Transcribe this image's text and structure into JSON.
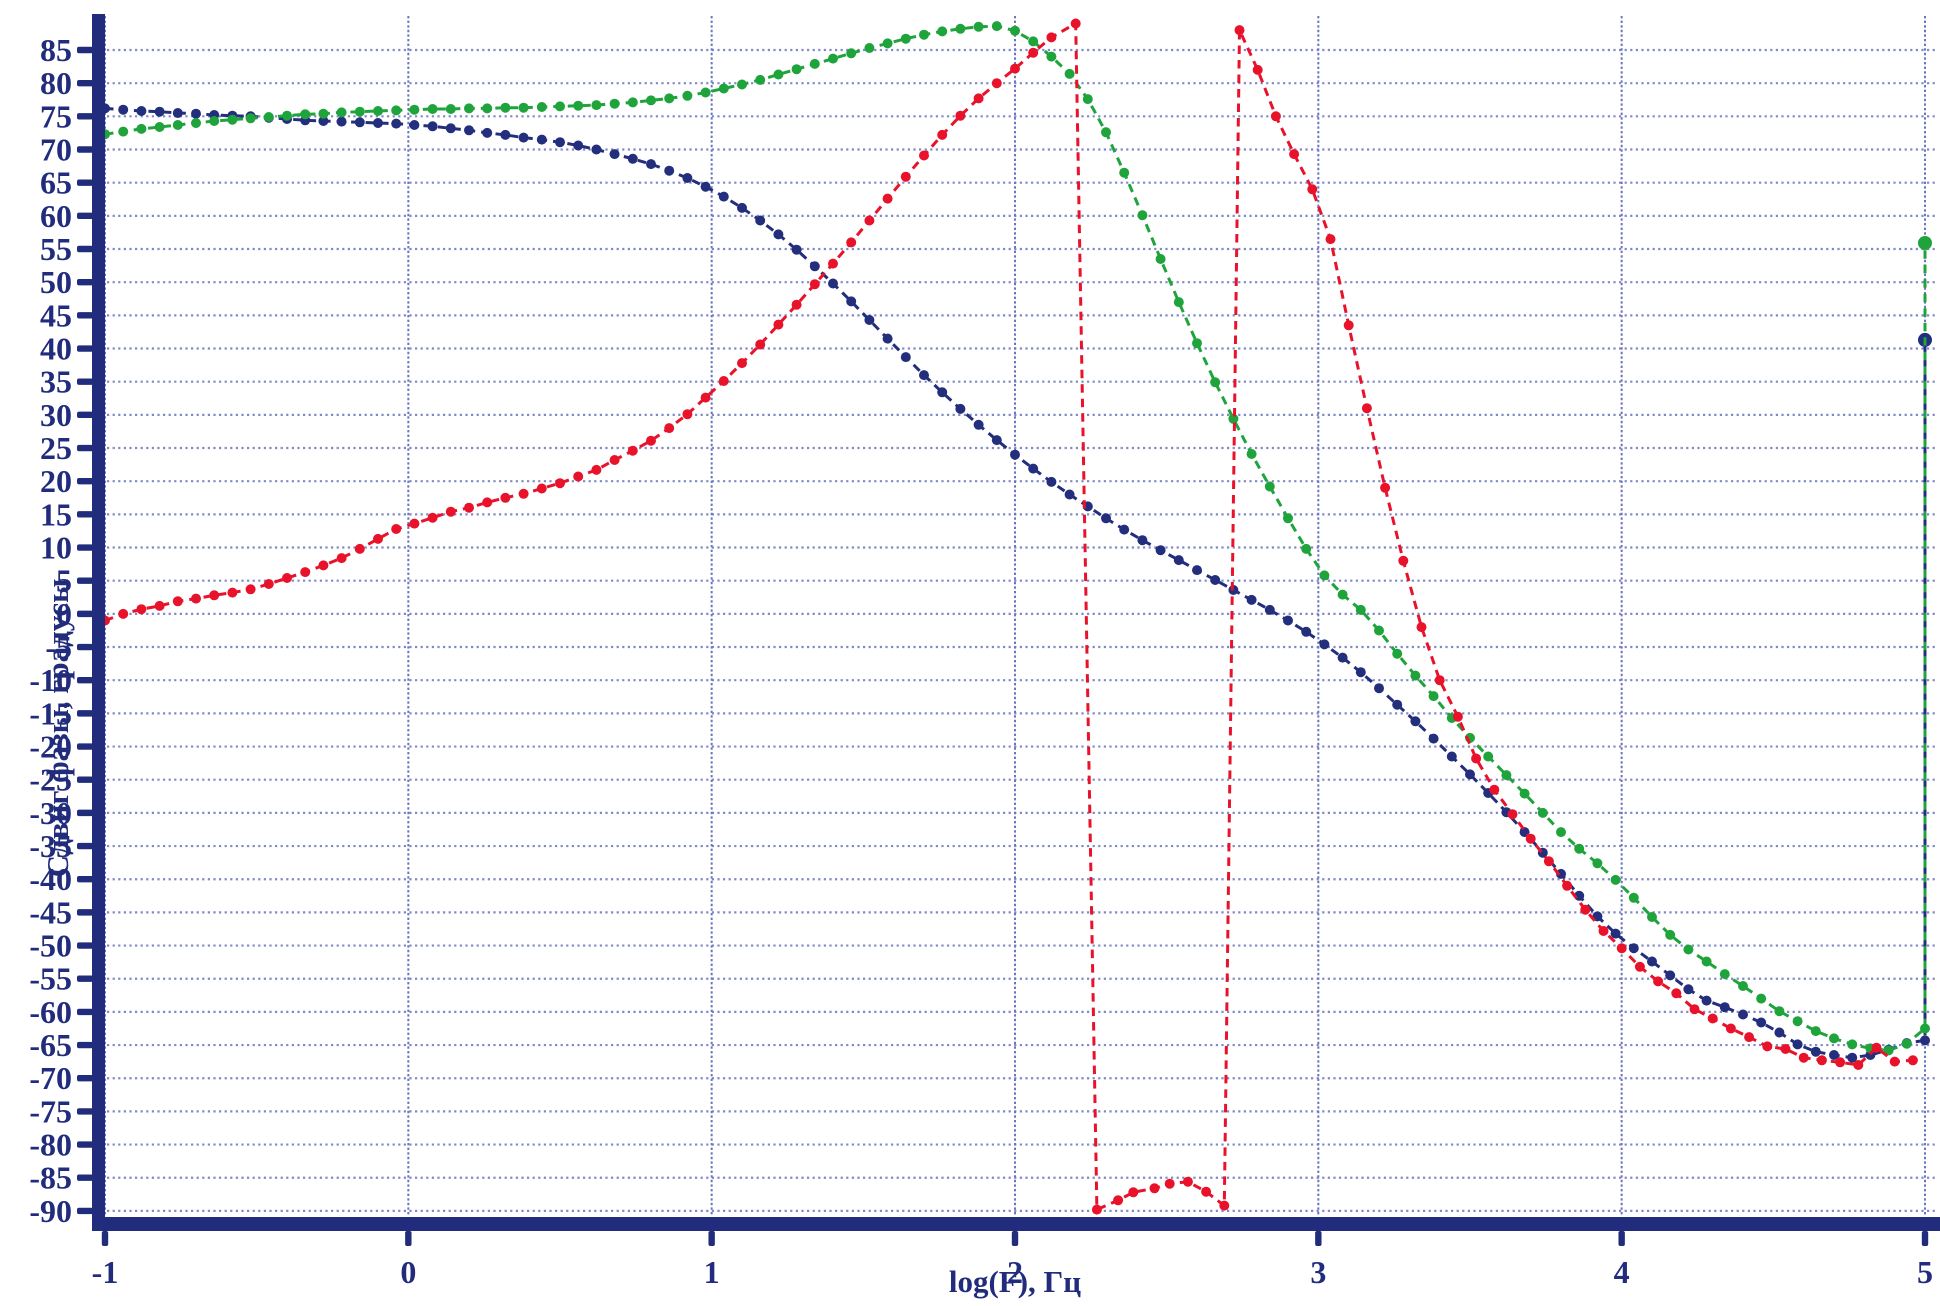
{
  "page": {
    "background": "#ffffff"
  },
  "chart_data": {
    "type": "line",
    "title": "",
    "xlabel": "log(F), Гц",
    "ylabel": "Сдвиг фазы, градусы",
    "xlim": [
      -1,
      5
    ],
    "ylim": [
      -90,
      90.5
    ],
    "x_ticks": [
      -1,
      0,
      1,
      2,
      3,
      4,
      5
    ],
    "y_ticks": [
      85,
      80,
      75,
      70,
      65,
      60,
      55,
      50,
      45,
      40,
      35,
      30,
      25,
      20,
      15,
      10,
      5,
      0,
      -5,
      -10,
      -15,
      -20,
      -25,
      -30,
      -35,
      -40,
      -45,
      -50,
      -55,
      -60,
      -65,
      -70,
      -75,
      -80,
      -85,
      -90
    ],
    "grid": "dotted",
    "legend": "none",
    "axis_color": "#222c7c",
    "grid_color": "#8089c8",
    "vgrid_color": "#6a76bf",
    "label_color": "#222c7c",
    "line_style": "dashed-with-dot-markers",
    "series": [
      {
        "name": "navy-phase-curve",
        "color": "#232e7d",
        "endpoint_jump": true,
        "points": [
          [
            -1.0,
            76.2
          ],
          [
            -0.94,
            76.0
          ],
          [
            -0.88,
            75.8
          ],
          [
            -0.82,
            75.7
          ],
          [
            -0.76,
            75.5
          ],
          [
            -0.7,
            75.4
          ],
          [
            -0.64,
            75.2
          ],
          [
            -0.58,
            75.1
          ],
          [
            -0.52,
            75.0
          ],
          [
            -0.46,
            74.8
          ],
          [
            -0.4,
            74.6
          ],
          [
            -0.34,
            74.4
          ],
          [
            -0.28,
            74.3
          ],
          [
            -0.22,
            74.2
          ],
          [
            -0.16,
            74.1
          ],
          [
            -0.1,
            74.0
          ],
          [
            -0.04,
            73.9
          ],
          [
            0.02,
            73.7
          ],
          [
            0.08,
            73.5
          ],
          [
            0.14,
            73.2
          ],
          [
            0.2,
            72.9
          ],
          [
            0.26,
            72.5
          ],
          [
            0.32,
            72.2
          ],
          [
            0.38,
            71.8
          ],
          [
            0.44,
            71.5
          ],
          [
            0.5,
            71.1
          ],
          [
            0.56,
            70.6
          ],
          [
            0.62,
            70.0
          ],
          [
            0.68,
            69.3
          ],
          [
            0.74,
            68.6
          ],
          [
            0.8,
            67.8
          ],
          [
            0.86,
            66.8
          ],
          [
            0.92,
            65.7
          ],
          [
            0.98,
            64.4
          ],
          [
            1.04,
            62.9
          ],
          [
            1.1,
            61.2
          ],
          [
            1.16,
            59.3
          ],
          [
            1.22,
            57.2
          ],
          [
            1.28,
            54.9
          ],
          [
            1.34,
            52.4
          ],
          [
            1.4,
            49.8
          ],
          [
            1.46,
            47.1
          ],
          [
            1.52,
            44.3
          ],
          [
            1.58,
            41.5
          ],
          [
            1.64,
            38.7
          ],
          [
            1.7,
            36.0
          ],
          [
            1.76,
            33.4
          ],
          [
            1.82,
            30.9
          ],
          [
            1.88,
            28.5
          ],
          [
            1.94,
            26.2
          ],
          [
            2.0,
            24.0
          ],
          [
            2.06,
            21.9
          ],
          [
            2.12,
            19.9
          ],
          [
            2.18,
            18.0
          ],
          [
            2.24,
            16.2
          ],
          [
            2.3,
            14.4
          ],
          [
            2.36,
            12.7
          ],
          [
            2.42,
            11.1
          ],
          [
            2.48,
            9.6
          ],
          [
            2.54,
            8.1
          ],
          [
            2.6,
            6.6
          ],
          [
            2.66,
            5.1
          ],
          [
            2.72,
            3.6
          ],
          [
            2.78,
            2.1
          ],
          [
            2.84,
            0.6
          ],
          [
            2.9,
            -1.0
          ],
          [
            2.96,
            -2.7
          ],
          [
            3.02,
            -4.6
          ],
          [
            3.08,
            -6.6
          ],
          [
            3.14,
            -8.8
          ],
          [
            3.2,
            -11.2
          ],
          [
            3.26,
            -13.7
          ],
          [
            3.32,
            -16.2
          ],
          [
            3.38,
            -18.8
          ],
          [
            3.44,
            -21.5
          ],
          [
            3.5,
            -24.2
          ],
          [
            3.56,
            -27.0
          ],
          [
            3.62,
            -29.9
          ],
          [
            3.68,
            -32.9
          ],
          [
            3.74,
            -36.0
          ],
          [
            3.8,
            -39.2
          ],
          [
            3.86,
            -42.5
          ],
          [
            3.92,
            -45.6
          ],
          [
            3.98,
            -48.2
          ],
          [
            4.04,
            -50.4
          ],
          [
            4.1,
            -52.4
          ],
          [
            4.16,
            -54.5
          ],
          [
            4.22,
            -56.6
          ],
          [
            4.28,
            -58.3
          ],
          [
            4.34,
            -59.3
          ],
          [
            4.4,
            -60.4
          ],
          [
            4.46,
            -61.6
          ],
          [
            4.52,
            -63.1
          ],
          [
            4.58,
            -64.9
          ],
          [
            4.64,
            -66.0
          ],
          [
            4.7,
            -66.5
          ],
          [
            4.76,
            -66.9
          ],
          [
            4.82,
            -66.5
          ],
          [
            4.88,
            -65.7
          ],
          [
            4.94,
            -64.7
          ],
          [
            5.0,
            -64.3
          ],
          [
            5.0,
            41.3
          ]
        ]
      },
      {
        "name": "green-phase-curve",
        "color": "#1fa43c",
        "endpoint_jump": true,
        "points": [
          [
            -1.0,
            72.3
          ],
          [
            -0.94,
            72.7
          ],
          [
            -0.88,
            73.1
          ],
          [
            -0.82,
            73.4
          ],
          [
            -0.76,
            73.7
          ],
          [
            -0.7,
            74.0
          ],
          [
            -0.64,
            74.3
          ],
          [
            -0.58,
            74.5
          ],
          [
            -0.52,
            74.7
          ],
          [
            -0.46,
            74.9
          ],
          [
            -0.4,
            75.1
          ],
          [
            -0.34,
            75.3
          ],
          [
            -0.28,
            75.4
          ],
          [
            -0.22,
            75.6
          ],
          [
            -0.16,
            75.7
          ],
          [
            -0.1,
            75.8
          ],
          [
            -0.04,
            75.9
          ],
          [
            0.02,
            76.0
          ],
          [
            0.08,
            76.1
          ],
          [
            0.14,
            76.1
          ],
          [
            0.2,
            76.2
          ],
          [
            0.26,
            76.2
          ],
          [
            0.32,
            76.3
          ],
          [
            0.38,
            76.3
          ],
          [
            0.44,
            76.4
          ],
          [
            0.5,
            76.5
          ],
          [
            0.56,
            76.6
          ],
          [
            0.62,
            76.7
          ],
          [
            0.68,
            76.9
          ],
          [
            0.74,
            77.1
          ],
          [
            0.8,
            77.4
          ],
          [
            0.86,
            77.7
          ],
          [
            0.92,
            78.1
          ],
          [
            0.98,
            78.6
          ],
          [
            1.04,
            79.2
          ],
          [
            1.1,
            79.8
          ],
          [
            1.16,
            80.5
          ],
          [
            1.22,
            81.3
          ],
          [
            1.28,
            82.1
          ],
          [
            1.34,
            82.9
          ],
          [
            1.4,
            83.7
          ],
          [
            1.46,
            84.5
          ],
          [
            1.52,
            85.3
          ],
          [
            1.58,
            86.0
          ],
          [
            1.64,
            86.7
          ],
          [
            1.7,
            87.3
          ],
          [
            1.76,
            87.8
          ],
          [
            1.82,
            88.2
          ],
          [
            1.88,
            88.5
          ],
          [
            1.94,
            88.6
          ],
          [
            2.0,
            87.9
          ],
          [
            2.06,
            86.3
          ],
          [
            2.12,
            84.0
          ],
          [
            2.18,
            81.4
          ],
          [
            2.24,
            77.6
          ],
          [
            2.3,
            72.6
          ],
          [
            2.36,
            66.5
          ],
          [
            2.42,
            60.1
          ],
          [
            2.48,
            53.5
          ],
          [
            2.54,
            47.0
          ],
          [
            2.6,
            40.8
          ],
          [
            2.66,
            34.9
          ],
          [
            2.72,
            29.4
          ],
          [
            2.78,
            24.1
          ],
          [
            2.84,
            19.2
          ],
          [
            2.9,
            14.4
          ],
          [
            2.96,
            9.8
          ],
          [
            3.02,
            5.8
          ],
          [
            3.08,
            2.9
          ],
          [
            3.14,
            0.6
          ],
          [
            3.2,
            -2.5
          ],
          [
            3.26,
            -6.0
          ],
          [
            3.32,
            -9.3
          ],
          [
            3.38,
            -12.4
          ],
          [
            3.44,
            -15.7
          ],
          [
            3.5,
            -18.7
          ],
          [
            3.56,
            -21.5
          ],
          [
            3.62,
            -24.3
          ],
          [
            3.68,
            -27.1
          ],
          [
            3.74,
            -30.0
          ],
          [
            3.8,
            -32.9
          ],
          [
            3.86,
            -35.4
          ],
          [
            3.92,
            -37.6
          ],
          [
            3.98,
            -40.1
          ],
          [
            4.04,
            -42.8
          ],
          [
            4.1,
            -45.7
          ],
          [
            4.16,
            -48.4
          ],
          [
            4.22,
            -50.6
          ],
          [
            4.28,
            -52.4
          ],
          [
            4.34,
            -54.3
          ],
          [
            4.4,
            -56.1
          ],
          [
            4.46,
            -58.0
          ],
          [
            4.52,
            -59.9
          ],
          [
            4.58,
            -61.4
          ],
          [
            4.64,
            -62.9
          ],
          [
            4.7,
            -64.0
          ],
          [
            4.76,
            -64.9
          ],
          [
            4.82,
            -65.5
          ],
          [
            4.88,
            -65.8
          ],
          [
            4.94,
            -64.8
          ],
          [
            5.0,
            -62.5
          ],
          [
            5.0,
            55.9
          ]
        ]
      },
      {
        "name": "red-phase-curve",
        "color": "#e8132b",
        "endpoint_jump": false,
        "points": [
          [
            -1.0,
            -1.0
          ],
          [
            -0.94,
            0.0
          ],
          [
            -0.88,
            0.7
          ],
          [
            -0.82,
            1.2
          ],
          [
            -0.76,
            1.9
          ],
          [
            -0.7,
            2.3
          ],
          [
            -0.64,
            2.8
          ],
          [
            -0.58,
            3.2
          ],
          [
            -0.52,
            3.7
          ],
          [
            -0.46,
            4.5
          ],
          [
            -0.4,
            5.4
          ],
          [
            -0.34,
            6.3
          ],
          [
            -0.28,
            7.3
          ],
          [
            -0.22,
            8.4
          ],
          [
            -0.16,
            9.8
          ],
          [
            -0.1,
            11.3
          ],
          [
            -0.04,
            12.8
          ],
          [
            0.02,
            13.6
          ],
          [
            0.08,
            14.5
          ],
          [
            0.14,
            15.4
          ],
          [
            0.2,
            16.0
          ],
          [
            0.26,
            16.8
          ],
          [
            0.32,
            17.5
          ],
          [
            0.38,
            18.1
          ],
          [
            0.44,
            18.9
          ],
          [
            0.5,
            19.7
          ],
          [
            0.56,
            20.7
          ],
          [
            0.62,
            21.7
          ],
          [
            0.68,
            23.2
          ],
          [
            0.74,
            24.6
          ],
          [
            0.8,
            26.1
          ],
          [
            0.86,
            28.0
          ],
          [
            0.92,
            30.1
          ],
          [
            0.98,
            32.6
          ],
          [
            1.04,
            35.1
          ],
          [
            1.1,
            37.8
          ],
          [
            1.16,
            40.6
          ],
          [
            1.22,
            43.6
          ],
          [
            1.28,
            46.6
          ],
          [
            1.34,
            49.7
          ],
          [
            1.4,
            52.8
          ],
          [
            1.46,
            56.0
          ],
          [
            1.52,
            59.3
          ],
          [
            1.58,
            62.6
          ],
          [
            1.64,
            65.9
          ],
          [
            1.7,
            69.1
          ],
          [
            1.76,
            72.2
          ],
          [
            1.82,
            75.1
          ],
          [
            1.88,
            77.7
          ],
          [
            1.94,
            80.0
          ],
          [
            2.0,
            82.2
          ],
          [
            2.06,
            84.6
          ],
          [
            2.12,
            86.9
          ],
          [
            2.2,
            89.0
          ],
          [
            2.27,
            -89.8
          ],
          [
            2.34,
            -88.4
          ],
          [
            2.39,
            -87.2
          ],
          [
            2.46,
            -86.6
          ],
          [
            2.51,
            -85.9
          ],
          [
            2.57,
            -85.6
          ],
          [
            2.63,
            -87.1
          ],
          [
            2.69,
            -89.2
          ],
          [
            2.74,
            88.0
          ],
          [
            2.8,
            82.0
          ],
          [
            2.86,
            75.0
          ],
          [
            2.92,
            69.3
          ],
          [
            2.98,
            64.0
          ],
          [
            3.04,
            56.5
          ],
          [
            3.1,
            43.5
          ],
          [
            3.16,
            31.0
          ],
          [
            3.22,
            19.0
          ],
          [
            3.28,
            8.0
          ],
          [
            3.34,
            -2.0
          ],
          [
            3.4,
            -10.0
          ],
          [
            3.46,
            -15.5
          ],
          [
            3.52,
            -21.8
          ],
          [
            3.58,
            -26.5
          ],
          [
            3.64,
            -30.2
          ],
          [
            3.7,
            -33.9
          ],
          [
            3.76,
            -37.3
          ],
          [
            3.82,
            -41.0
          ],
          [
            3.88,
            -44.6
          ],
          [
            3.94,
            -47.8
          ],
          [
            4.0,
            -50.4
          ],
          [
            4.06,
            -53.2
          ],
          [
            4.12,
            -55.4
          ],
          [
            4.18,
            -57.2
          ],
          [
            4.24,
            -59.6
          ],
          [
            4.3,
            -61.0
          ],
          [
            4.36,
            -62.5
          ],
          [
            4.42,
            -63.8
          ],
          [
            4.48,
            -65.2
          ],
          [
            4.54,
            -65.6
          ],
          [
            4.6,
            -66.9
          ],
          [
            4.66,
            -67.3
          ],
          [
            4.72,
            -67.6
          ],
          [
            4.78,
            -68.0
          ],
          [
            4.84,
            -65.4
          ],
          [
            4.9,
            -67.5
          ],
          [
            4.96,
            -67.3
          ]
        ]
      }
    ]
  }
}
